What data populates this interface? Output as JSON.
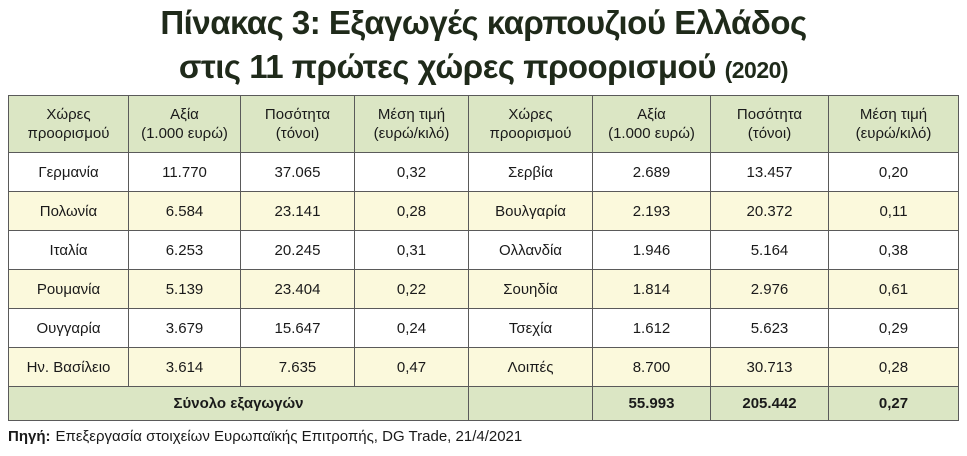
{
  "title": {
    "line1": "Πίνακας 3: Εξαγωγές καρπουζιού Ελλάδος",
    "line2": "στις 11 πρώτες χώρες προορισμού",
    "year": "(2020)"
  },
  "table": {
    "headers": [
      "Χώρες\nπροορισμού",
      "Αξία\n(1.000 ευρώ)",
      "Ποσότητα\n(τόνοι)",
      "Μέση τιμή\n(ευρώ/κιλό)",
      "Χώρες\nπροορισμού",
      "Αξία\n(1.000 ευρώ)",
      "Ποσότητα\n(τόνοι)",
      "Μέση τιμή\n(ευρώ/κιλό)"
    ],
    "rows": [
      [
        "Γερμανία",
        "11.770",
        "37.065",
        "0,32",
        "Σερβία",
        "2.689",
        "13.457",
        "0,20"
      ],
      [
        "Πολωνία",
        "6.584",
        "23.141",
        "0,28",
        "Βουλγαρία",
        "2.193",
        "20.372",
        "0,11"
      ],
      [
        "Ιταλία",
        "6.253",
        "20.245",
        "0,31",
        "Ολλανδία",
        "1.946",
        "5.164",
        "0,38"
      ],
      [
        "Ρουμανία",
        "5.139",
        "23.404",
        "0,22",
        "Σουηδία",
        "1.814",
        "2.976",
        "0,61"
      ],
      [
        "Ουγγαρία",
        "3.679",
        "15.647",
        "0,24",
        "Τσεχία",
        "1.612",
        "5.623",
        "0,29"
      ],
      [
        "Ην. Βασίλειο",
        "3.614",
        "7.635",
        "0,47",
        "Λοιπές",
        "8.700",
        "30.713",
        "0,28"
      ]
    ],
    "total": {
      "label": "Σύνολο εξαγωγών",
      "values": [
        "55.993",
        "205.442",
        "0,27"
      ]
    }
  },
  "source": {
    "label": "Πηγή:",
    "text": "Επεξεργασία στοιχείων Ευρωπαϊκής Επιτροπής, DG Trade, 21/4/2021"
  }
}
